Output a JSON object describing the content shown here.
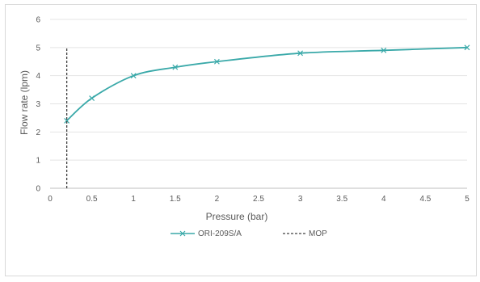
{
  "chart_data": {
    "type": "line",
    "title": "",
    "xlabel": "Pressure (bar)",
    "ylabel": "Flow rate (lpm)",
    "xlim": [
      0,
      5
    ],
    "ylim": [
      0,
      6
    ],
    "x_ticks": [
      "0",
      "0.5",
      "1",
      "1.5",
      "2",
      "2.5",
      "3",
      "3.5",
      "4",
      "4.5",
      "5"
    ],
    "y_ticks": [
      "0",
      "1",
      "2",
      "3",
      "4",
      "5",
      "6"
    ],
    "grid": "horizontal",
    "legend_position": "bottom",
    "series": [
      {
        "name": "ORI-209S/A",
        "style": "solid line with x markers",
        "color": "#3aa9a9",
        "x": [
          0.2,
          0.5,
          1,
          1.5,
          2,
          3,
          4,
          5
        ],
        "y": [
          2.4,
          3.2,
          4.0,
          4.3,
          4.5,
          4.8,
          4.9,
          5.0
        ]
      },
      {
        "name": "MOP",
        "style": "dashed vertical line",
        "color": "#404040",
        "x": [
          0.2,
          0.2
        ],
        "y": [
          0,
          5
        ]
      }
    ]
  }
}
